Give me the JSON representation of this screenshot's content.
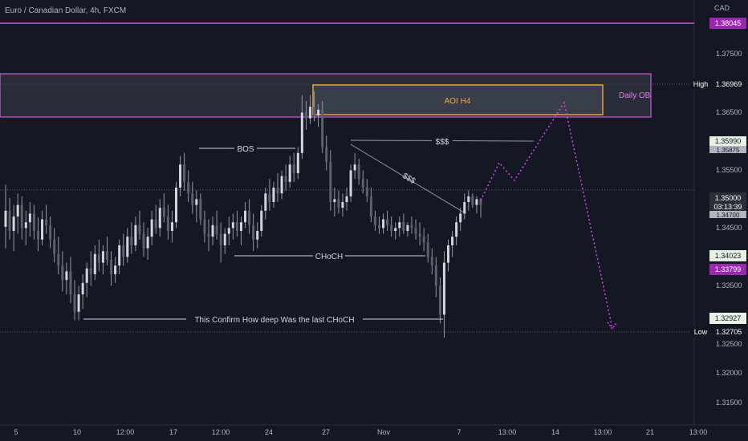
{
  "chart_data": {
    "type": "candlestick",
    "title": "Euro / Canadian Dollar, 4h, FXCM",
    "currency": "CAD",
    "ylim": [
      1.3105,
      1.3855
    ],
    "y_ticks": [
      "1.37500",
      "1.36500",
      "1.35500",
      "1.34500",
      "1.33500",
      "1.32500",
      "1.32000",
      "1.31500"
    ],
    "x_labels": [
      "5",
      "10",
      "12:00",
      "17",
      "12:00",
      "24",
      "27",
      "Nov",
      "7",
      "13:00",
      "14",
      "13:00",
      "21",
      "13:00"
    ],
    "price_badges": [
      {
        "value": "1.38045",
        "bg": "#9c27b0",
        "fg": "#ffffff"
      },
      {
        "value": "1.36969",
        "bg": "#131722",
        "fg": "#ffffff",
        "tag": "High"
      },
      {
        "value": "1.35990",
        "bg": "#e7f2e5",
        "fg": "#131722"
      },
      {
        "value": "1.35875",
        "bg": "#b2b5be",
        "fg": "#131722"
      },
      {
        "value": "1.35000",
        "bg": "#2a2e39",
        "fg": "#ffffff",
        "sub": "03:13:39"
      },
      {
        "value": "1.34700",
        "bg": "#b2b5be",
        "fg": "#131722"
      },
      {
        "value": "1.34023",
        "bg": "#e7f2e5",
        "fg": "#131722"
      },
      {
        "value": "1.33799",
        "bg": "#9c27b0",
        "fg": "#ffffff"
      },
      {
        "value": "1.32927",
        "bg": "#e7f2e5",
        "fg": "#131722"
      },
      {
        "value": "1.32705",
        "bg": "#131722",
        "fg": "#ffffff",
        "tag": "Low"
      }
    ],
    "annotations": {
      "daily_ob": "Daily OB",
      "aoi": "AOI H4",
      "bos": "BOS",
      "liquidity_top": "$$$",
      "liquidity_trend": "$$$",
      "choch": "CHoCH",
      "confirm": "This Confirm How deep Was the last CHoCH"
    },
    "candles": [
      {
        "o": 1.3462,
        "h": 1.3535,
        "l": 1.3425,
        "c": 1.349
      },
      {
        "o": 1.349,
        "h": 1.3512,
        "l": 1.344,
        "c": 1.3455
      },
      {
        "o": 1.3455,
        "h": 1.35,
        "l": 1.342,
        "c": 1.348
      },
      {
        "o": 1.348,
        "h": 1.352,
        "l": 1.345,
        "c": 1.35
      },
      {
        "o": 1.35,
        "h": 1.3515,
        "l": 1.344,
        "c": 1.346
      },
      {
        "o": 1.346,
        "h": 1.349,
        "l": 1.343,
        "c": 1.347
      },
      {
        "o": 1.347,
        "h": 1.3505,
        "l": 1.3445,
        "c": 1.3485
      },
      {
        "o": 1.3485,
        "h": 1.35,
        "l": 1.344,
        "c": 1.3455
      },
      {
        "o": 1.3455,
        "h": 1.3478,
        "l": 1.342,
        "c": 1.344
      },
      {
        "o": 1.344,
        "h": 1.349,
        "l": 1.343,
        "c": 1.3475
      },
      {
        "o": 1.3475,
        "h": 1.35,
        "l": 1.345,
        "c": 1.3465
      },
      {
        "o": 1.3465,
        "h": 1.348,
        "l": 1.3425,
        "c": 1.344
      },
      {
        "o": 1.344,
        "h": 1.346,
        "l": 1.34,
        "c": 1.3415
      },
      {
        "o": 1.3415,
        "h": 1.3445,
        "l": 1.338,
        "c": 1.3395
      },
      {
        "o": 1.3395,
        "h": 1.342,
        "l": 1.335,
        "c": 1.337
      },
      {
        "o": 1.337,
        "h": 1.34,
        "l": 1.3345,
        "c": 1.3385
      },
      {
        "o": 1.3385,
        "h": 1.341,
        "l": 1.333,
        "c": 1.3345
      },
      {
        "o": 1.3345,
        "h": 1.337,
        "l": 1.33,
        "c": 1.3315
      },
      {
        "o": 1.3315,
        "h": 1.336,
        "l": 1.33,
        "c": 1.3345
      },
      {
        "o": 1.3345,
        "h": 1.338,
        "l": 1.332,
        "c": 1.3365
      },
      {
        "o": 1.3365,
        "h": 1.34,
        "l": 1.334,
        "c": 1.339
      },
      {
        "o": 1.339,
        "h": 1.342,
        "l": 1.336,
        "c": 1.338
      },
      {
        "o": 1.338,
        "h": 1.343,
        "l": 1.337,
        "c": 1.3415
      },
      {
        "o": 1.3415,
        "h": 1.344,
        "l": 1.3385,
        "c": 1.34
      },
      {
        "o": 1.34,
        "h": 1.343,
        "l": 1.338,
        "c": 1.342
      },
      {
        "o": 1.342,
        "h": 1.3445,
        "l": 1.3395,
        "c": 1.3405
      },
      {
        "o": 1.3405,
        "h": 1.342,
        "l": 1.336,
        "c": 1.338
      },
      {
        "o": 1.338,
        "h": 1.341,
        "l": 1.3365,
        "c": 1.3395
      },
      {
        "o": 1.3395,
        "h": 1.344,
        "l": 1.338,
        "c": 1.343
      },
      {
        "o": 1.343,
        "h": 1.345,
        "l": 1.3395,
        "c": 1.341
      },
      {
        "o": 1.341,
        "h": 1.346,
        "l": 1.34,
        "c": 1.3445
      },
      {
        "o": 1.3445,
        "h": 1.347,
        "l": 1.3415,
        "c": 1.343
      },
      {
        "o": 1.343,
        "h": 1.348,
        "l": 1.342,
        "c": 1.3465
      },
      {
        "o": 1.3465,
        "h": 1.349,
        "l": 1.344,
        "c": 1.345
      },
      {
        "o": 1.345,
        "h": 1.347,
        "l": 1.341,
        "c": 1.3425
      },
      {
        "o": 1.3425,
        "h": 1.346,
        "l": 1.3405,
        "c": 1.3445
      },
      {
        "o": 1.3445,
        "h": 1.349,
        "l": 1.343,
        "c": 1.3475
      },
      {
        "o": 1.3475,
        "h": 1.35,
        "l": 1.345,
        "c": 1.346
      },
      {
        "o": 1.346,
        "h": 1.351,
        "l": 1.3445,
        "c": 1.3495
      },
      {
        "o": 1.3495,
        "h": 1.352,
        "l": 1.347,
        "c": 1.348
      },
      {
        "o": 1.348,
        "h": 1.35,
        "l": 1.344,
        "c": 1.3455
      },
      {
        "o": 1.3455,
        "h": 1.349,
        "l": 1.3435,
        "c": 1.347
      },
      {
        "o": 1.347,
        "h": 1.354,
        "l": 1.346,
        "c": 1.353
      },
      {
        "o": 1.353,
        "h": 1.3585,
        "l": 1.3515,
        "c": 1.357
      },
      {
        "o": 1.357,
        "h": 1.359,
        "l": 1.3525,
        "c": 1.354
      },
      {
        "o": 1.354,
        "h": 1.356,
        "l": 1.3505,
        "c": 1.352
      },
      {
        "o": 1.352,
        "h": 1.354,
        "l": 1.3485,
        "c": 1.35
      },
      {
        "o": 1.35,
        "h": 1.3525,
        "l": 1.347,
        "c": 1.351
      },
      {
        "o": 1.351,
        "h": 1.352,
        "l": 1.3465,
        "c": 1.3475
      },
      {
        "o": 1.3475,
        "h": 1.349,
        "l": 1.3435,
        "c": 1.345
      },
      {
        "o": 1.345,
        "h": 1.3475,
        "l": 1.342,
        "c": 1.3445
      },
      {
        "o": 1.3445,
        "h": 1.348,
        "l": 1.343,
        "c": 1.3465
      },
      {
        "o": 1.3465,
        "h": 1.349,
        "l": 1.344,
        "c": 1.345
      },
      {
        "o": 1.345,
        "h": 1.347,
        "l": 1.34,
        "c": 1.343
      },
      {
        "o": 1.343,
        "h": 1.346,
        "l": 1.3415,
        "c": 1.345
      },
      {
        "o": 1.345,
        "h": 1.348,
        "l": 1.343,
        "c": 1.346
      },
      {
        "o": 1.346,
        "h": 1.3485,
        "l": 1.344,
        "c": 1.347
      },
      {
        "o": 1.347,
        "h": 1.349,
        "l": 1.3445,
        "c": 1.3455
      },
      {
        "o": 1.3455,
        "h": 1.348,
        "l": 1.343,
        "c": 1.347
      },
      {
        "o": 1.347,
        "h": 1.3505,
        "l": 1.346,
        "c": 1.349
      },
      {
        "o": 1.349,
        "h": 1.351,
        "l": 1.345,
        "c": 1.3465
      },
      {
        "o": 1.3465,
        "h": 1.3485,
        "l": 1.342,
        "c": 1.344
      },
      {
        "o": 1.344,
        "h": 1.347,
        "l": 1.3425,
        "c": 1.3455
      },
      {
        "o": 1.3455,
        "h": 1.35,
        "l": 1.3445,
        "c": 1.349
      },
      {
        "o": 1.349,
        "h": 1.353,
        "l": 1.3475,
        "c": 1.352
      },
      {
        "o": 1.352,
        "h": 1.3545,
        "l": 1.349,
        "c": 1.3505
      },
      {
        "o": 1.3505,
        "h": 1.354,
        "l": 1.3495,
        "c": 1.353
      },
      {
        "o": 1.353,
        "h": 1.3555,
        "l": 1.3505,
        "c": 1.352
      },
      {
        "o": 1.352,
        "h": 1.356,
        "l": 1.351,
        "c": 1.355
      },
      {
        "o": 1.355,
        "h": 1.357,
        "l": 1.3525,
        "c": 1.354
      },
      {
        "o": 1.354,
        "h": 1.3585,
        "l": 1.353,
        "c": 1.357
      },
      {
        "o": 1.357,
        "h": 1.359,
        "l": 1.354,
        "c": 1.3555
      },
      {
        "o": 1.3555,
        "h": 1.36,
        "l": 1.3545,
        "c": 1.359
      },
      {
        "o": 1.359,
        "h": 1.369,
        "l": 1.358,
        "c": 1.366
      },
      {
        "o": 1.366,
        "h": 1.368,
        "l": 1.363,
        "c": 1.365
      },
      {
        "o": 1.365,
        "h": 1.369,
        "l": 1.364,
        "c": 1.367
      },
      {
        "o": 1.367,
        "h": 1.3697,
        "l": 1.3645,
        "c": 1.3655
      },
      {
        "o": 1.3655,
        "h": 1.3675,
        "l": 1.3635,
        "c": 1.3665
      },
      {
        "o": 1.3665,
        "h": 1.368,
        "l": 1.359,
        "c": 1.36
      },
      {
        "o": 1.36,
        "h": 1.362,
        "l": 1.356,
        "c": 1.3575
      },
      {
        "o": 1.3575,
        "h": 1.3595,
        "l": 1.349,
        "c": 1.3505
      },
      {
        "o": 1.3505,
        "h": 1.353,
        "l": 1.348,
        "c": 1.351
      },
      {
        "o": 1.351,
        "h": 1.3525,
        "l": 1.3485,
        "c": 1.3495
      },
      {
        "o": 1.3495,
        "h": 1.352,
        "l": 1.348,
        "c": 1.3505
      },
      {
        "o": 1.3505,
        "h": 1.353,
        "l": 1.349,
        "c": 1.3515
      },
      {
        "o": 1.3515,
        "h": 1.357,
        "l": 1.3505,
        "c": 1.356
      },
      {
        "o": 1.356,
        "h": 1.359,
        "l": 1.3545,
        "c": 1.357
      },
      {
        "o": 1.357,
        "h": 1.358,
        "l": 1.3535,
        "c": 1.3545
      },
      {
        "o": 1.3545,
        "h": 1.356,
        "l": 1.352,
        "c": 1.353
      },
      {
        "o": 1.353,
        "h": 1.3545,
        "l": 1.3505,
        "c": 1.3515
      },
      {
        "o": 1.3515,
        "h": 1.353,
        "l": 1.347,
        "c": 1.348
      },
      {
        "o": 1.348,
        "h": 1.349,
        "l": 1.3455,
        "c": 1.3465
      },
      {
        "o": 1.3465,
        "h": 1.348,
        "l": 1.345,
        "c": 1.346
      },
      {
        "o": 1.346,
        "h": 1.3485,
        "l": 1.345,
        "c": 1.3475
      },
      {
        "o": 1.3475,
        "h": 1.349,
        "l": 1.3455,
        "c": 1.3465
      },
      {
        "o": 1.3465,
        "h": 1.348,
        "l": 1.3445,
        "c": 1.3455
      },
      {
        "o": 1.3455,
        "h": 1.347,
        "l": 1.344,
        "c": 1.346
      },
      {
        "o": 1.346,
        "h": 1.348,
        "l": 1.3445,
        "c": 1.347
      },
      {
        "o": 1.347,
        "h": 1.3485,
        "l": 1.345,
        "c": 1.3455
      },
      {
        "o": 1.3455,
        "h": 1.347,
        "l": 1.3445,
        "c": 1.3465
      },
      {
        "o": 1.3465,
        "h": 1.348,
        "l": 1.345,
        "c": 1.346
      },
      {
        "o": 1.346,
        "h": 1.3475,
        "l": 1.344,
        "c": 1.345
      },
      {
        "o": 1.345,
        "h": 1.347,
        "l": 1.343,
        "c": 1.3445
      },
      {
        "o": 1.3445,
        "h": 1.346,
        "l": 1.342,
        "c": 1.3435
      },
      {
        "o": 1.3435,
        "h": 1.345,
        "l": 1.34,
        "c": 1.341
      },
      {
        "o": 1.341,
        "h": 1.3425,
        "l": 1.338,
        "c": 1.3395
      },
      {
        "o": 1.3395,
        "h": 1.341,
        "l": 1.334,
        "c": 1.336
      },
      {
        "o": 1.336,
        "h": 1.3375,
        "l": 1.3295,
        "c": 1.331
      },
      {
        "o": 1.331,
        "h": 1.342,
        "l": 1.327,
        "c": 1.34
      },
      {
        "o": 1.34,
        "h": 1.344,
        "l": 1.3385,
        "c": 1.343
      },
      {
        "o": 1.343,
        "h": 1.3455,
        "l": 1.341,
        "c": 1.3445
      },
      {
        "o": 1.3445,
        "h": 1.348,
        "l": 1.343,
        "c": 1.347
      },
      {
        "o": 1.347,
        "h": 1.3495,
        "l": 1.3455,
        "c": 1.3485
      },
      {
        "o": 1.3485,
        "h": 1.352,
        "l": 1.3475,
        "c": 1.3505
      },
      {
        "o": 1.3505,
        "h": 1.3525,
        "l": 1.349,
        "c": 1.3515
      },
      {
        "o": 1.3515,
        "h": 1.352,
        "l": 1.3495,
        "c": 1.35
      },
      {
        "o": 1.35,
        "h": 1.3515,
        "l": 1.3485,
        "c": 1.351
      },
      {
        "o": 1.351,
        "h": 1.3512,
        "l": 1.3478,
        "c": 1.35
      }
    ],
    "projection": [
      [
        599,
        250
      ],
      [
        622,
        203
      ],
      [
        641,
        225
      ],
      [
        703,
        128
      ],
      [
        763,
        410
      ]
    ],
    "colors": {
      "background": "#141823",
      "candle_up": "#d1d4dc",
      "candle_down": "#5d606b",
      "wick": "#9598a1",
      "daily_ob": "#ce59e0",
      "aoi": "#f5a742",
      "projection": "#e040fb",
      "annotation_line": "#d1d4dc"
    }
  }
}
